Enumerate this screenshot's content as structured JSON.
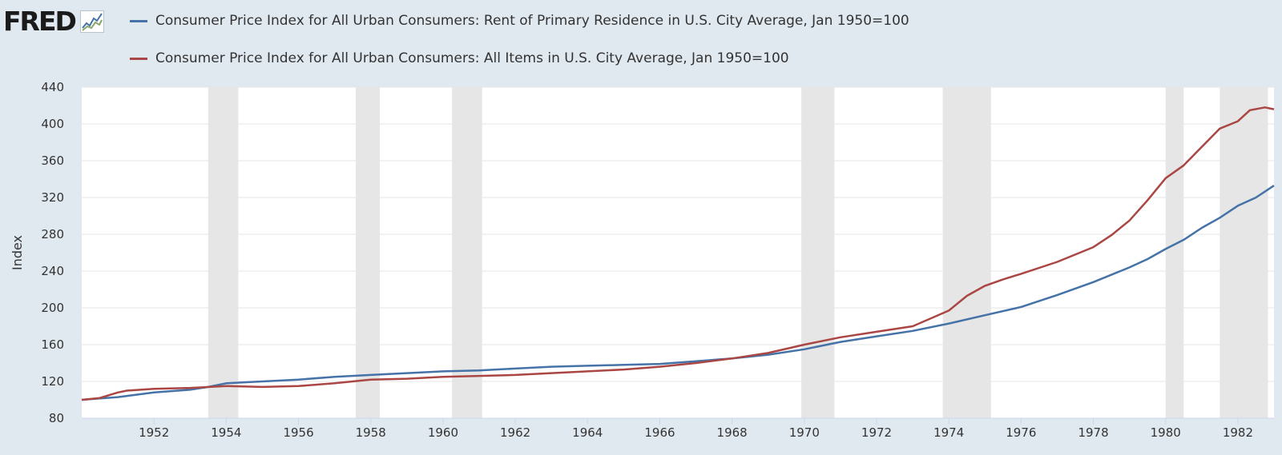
{
  "logo": {
    "text": "FRED",
    "icon": "fred-chart-icon"
  },
  "chart_data": {
    "type": "line",
    "title": "",
    "xlabel": "",
    "ylabel": "Index",
    "ylim": [
      80,
      440
    ],
    "yticks": [
      80,
      120,
      160,
      200,
      240,
      280,
      320,
      360,
      400,
      440
    ],
    "xlim": [
      "1950-01",
      "1983-01"
    ],
    "xticks": [
      "1952",
      "1954",
      "1956",
      "1958",
      "1960",
      "1962",
      "1964",
      "1966",
      "1968",
      "1970",
      "1972",
      "1974",
      "1976",
      "1978",
      "1980",
      "1982"
    ],
    "grid": "horizontal",
    "legend_position": "top-left",
    "recessions": [
      [
        "1953-07",
        "1954-05"
      ],
      [
        "1957-08",
        "1958-04"
      ],
      [
        "1960-04",
        "1961-02"
      ],
      [
        "1969-12",
        "1970-11"
      ],
      [
        "1973-11",
        "1975-03"
      ],
      [
        "1980-01",
        "1980-07"
      ],
      [
        "1981-07",
        "1982-11"
      ]
    ],
    "series": [
      {
        "name": "Consumer Price Index for All Urban Consumers: Rent of Primary Residence in U.S. City Average, Jan 1950=100",
        "color": "#4572a7",
        "points": [
          [
            "1950-01",
            100
          ],
          [
            "1951-01",
            103
          ],
          [
            "1952-01",
            108
          ],
          [
            "1953-01",
            111
          ],
          [
            "1953-07",
            114
          ],
          [
            "1954-01",
            118
          ],
          [
            "1955-01",
            120
          ],
          [
            "1956-01",
            122
          ],
          [
            "1957-01",
            125
          ],
          [
            "1958-01",
            127
          ],
          [
            "1959-01",
            129
          ],
          [
            "1960-01",
            131
          ],
          [
            "1961-01",
            132
          ],
          [
            "1962-01",
            134
          ],
          [
            "1963-01",
            136
          ],
          [
            "1964-01",
            137
          ],
          [
            "1965-01",
            138
          ],
          [
            "1966-01",
            139
          ],
          [
            "1967-01",
            142
          ],
          [
            "1968-01",
            145
          ],
          [
            "1969-01",
            149
          ],
          [
            "1970-01",
            155
          ],
          [
            "1971-01",
            163
          ],
          [
            "1972-01",
            169
          ],
          [
            "1973-01",
            175
          ],
          [
            "1974-01",
            183
          ],
          [
            "1975-01",
            192
          ],
          [
            "1976-01",
            201
          ],
          [
            "1977-01",
            214
          ],
          [
            "1978-01",
            228
          ],
          [
            "1979-01",
            244
          ],
          [
            "1979-07",
            253
          ],
          [
            "1980-01",
            264
          ],
          [
            "1980-07",
            274
          ],
          [
            "1981-01",
            287
          ],
          [
            "1981-07",
            298
          ],
          [
            "1982-01",
            311
          ],
          [
            "1982-07",
            320
          ],
          [
            "1983-01",
            333
          ]
        ]
      },
      {
        "name": "Consumer Price Index for All Urban Consumers: All Items in U.S. City Average, Jan 1950=100",
        "color": "#aa4643",
        "points": [
          [
            "1950-01",
            100
          ],
          [
            "1950-07",
            102
          ],
          [
            "1951-01",
            108
          ],
          [
            "1951-04",
            110
          ],
          [
            "1952-01",
            112
          ],
          [
            "1953-01",
            113
          ],
          [
            "1954-01",
            115
          ],
          [
            "1955-01",
            114
          ],
          [
            "1956-01",
            115
          ],
          [
            "1957-01",
            118
          ],
          [
            "1958-01",
            122
          ],
          [
            "1959-01",
            123
          ],
          [
            "1960-01",
            125
          ],
          [
            "1961-01",
            126
          ],
          [
            "1962-01",
            127
          ],
          [
            "1963-01",
            129
          ],
          [
            "1964-01",
            131
          ],
          [
            "1965-01",
            133
          ],
          [
            "1966-01",
            136
          ],
          [
            "1967-01",
            140
          ],
          [
            "1968-01",
            145
          ],
          [
            "1969-01",
            151
          ],
          [
            "1970-01",
            160
          ],
          [
            "1971-01",
            168
          ],
          [
            "1972-01",
            174
          ],
          [
            "1973-01",
            180
          ],
          [
            "1974-01",
            197
          ],
          [
            "1974-07",
            213
          ],
          [
            "1975-01",
            224
          ],
          [
            "1975-07",
            231
          ],
          [
            "1976-01",
            237
          ],
          [
            "1977-01",
            250
          ],
          [
            "1978-01",
            266
          ],
          [
            "1978-07",
            279
          ],
          [
            "1979-01",
            295
          ],
          [
            "1979-07",
            317
          ],
          [
            "1980-01",
            341
          ],
          [
            "1980-07",
            355
          ],
          [
            "1981-01",
            375
          ],
          [
            "1981-07",
            395
          ],
          [
            "1982-01",
            403
          ],
          [
            "1982-05",
            415
          ],
          [
            "1982-10",
            418
          ],
          [
            "1983-01",
            416
          ]
        ]
      }
    ]
  }
}
